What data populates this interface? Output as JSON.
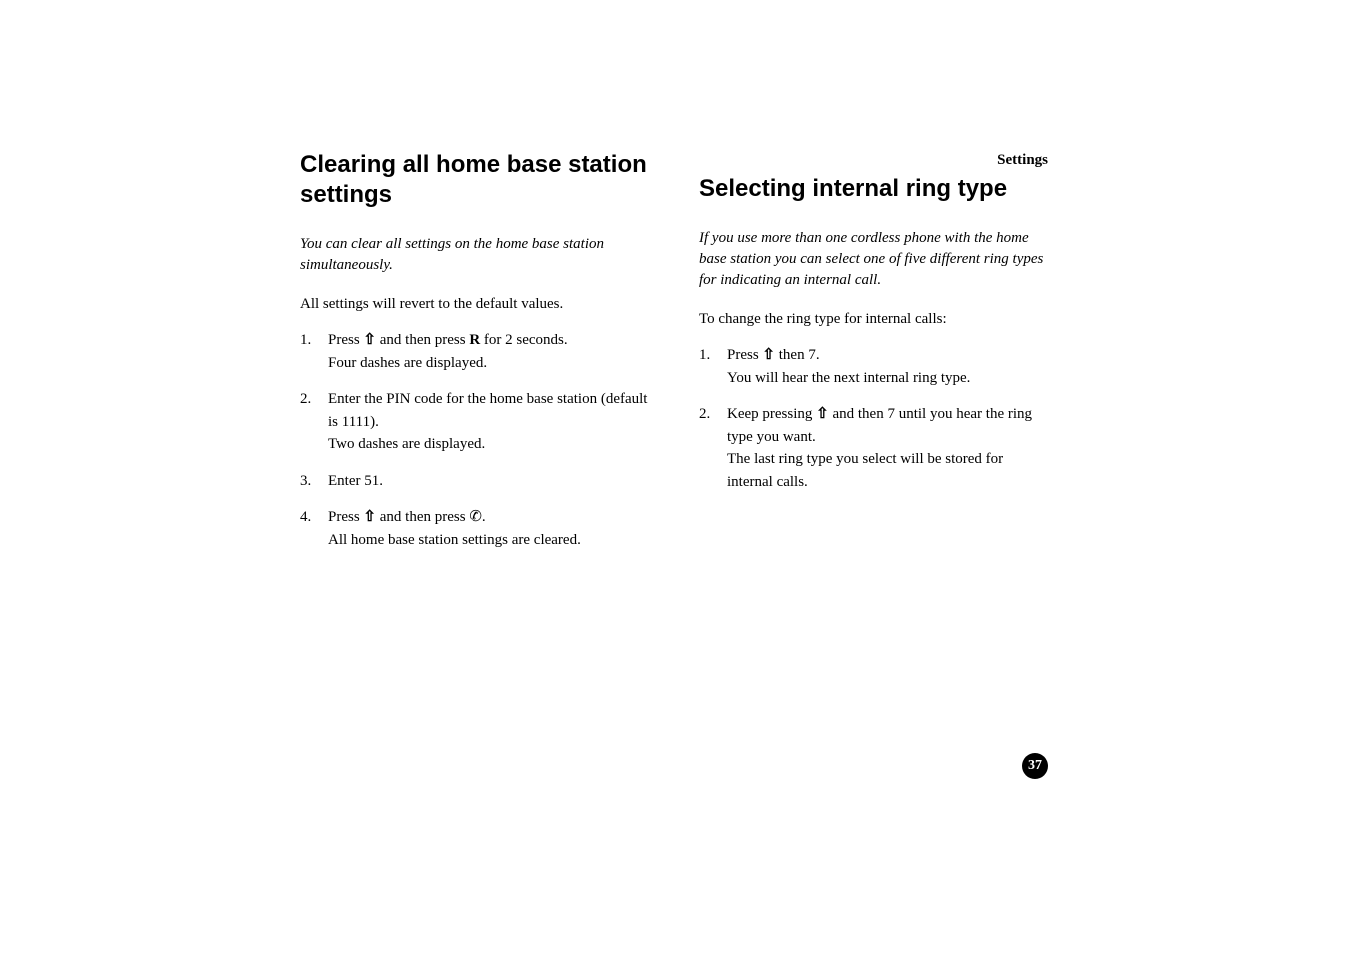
{
  "header": {
    "label": "Settings"
  },
  "left_column": {
    "title": "Clearing all home base station settings",
    "intro": "You can clear all settings on the home base station simultaneously.",
    "body": "All settings will revert to the default values.",
    "steps": [
      {
        "prefix": "Press ",
        "icon1": "⇧",
        "mid1": " and then press ",
        "key": "R",
        "mid2": " for 2 seconds.",
        "line2": "Four dashes are displayed."
      },
      {
        "text": "Enter the PIN code for the home base station (default is 1111).",
        "line2": "Two dashes are displayed."
      },
      {
        "text": "Enter 51."
      },
      {
        "prefix": "Press ",
        "icon1": "⇧",
        "mid1": " and then press ",
        "icon2": "✆",
        "mid2": ".",
        "line2": "All home base station settings are cleared."
      }
    ]
  },
  "right_column": {
    "title": "Selecting internal ring type",
    "intro": "If you use more than one cordless phone with the home base station you can select one of five different ring types for indicating an internal call.",
    "body": "To change the ring type for internal calls:",
    "steps": [
      {
        "prefix": "Press ",
        "icon1": "⇧",
        "mid1": " then 7.",
        "line2": "You will hear the next internal ring type."
      },
      {
        "prefix": "Keep pressing ",
        "icon1": "⇧",
        "mid1": " and then 7 until you hear the ring type you want.",
        "line2": "The last ring type you select will be stored for internal calls."
      }
    ]
  },
  "page_number": "37",
  "styling": {
    "background_color": "#ffffff",
    "text_color": "#000000",
    "title_font": "Arial",
    "title_fontsize": 24,
    "title_weight": "bold",
    "body_font": "Georgia",
    "body_fontsize": 15,
    "intro_style": "italic",
    "page_number_bg": "#000000",
    "page_number_color": "#ffffff",
    "page_number_size": 26,
    "column_gap": 50
  }
}
